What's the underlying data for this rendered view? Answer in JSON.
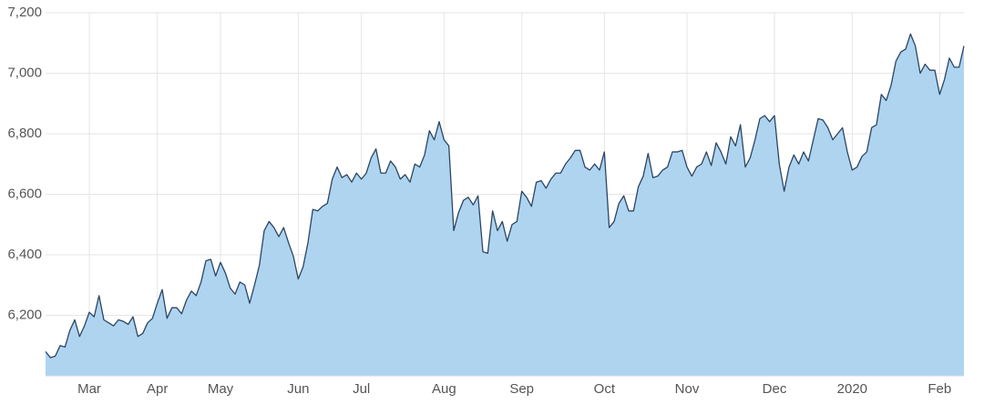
{
  "chart_data": {
    "type": "area",
    "categories": [
      null,
      null,
      null,
      null,
      null,
      null,
      null,
      null,
      null,
      "Mar",
      null,
      null,
      null,
      null,
      null,
      null,
      null,
      null,
      null,
      null,
      null,
      null,
      null,
      "Apr",
      null,
      null,
      null,
      null,
      null,
      null,
      null,
      null,
      null,
      null,
      null,
      null,
      "May",
      null,
      null,
      null,
      null,
      null,
      null,
      null,
      null,
      null,
      null,
      null,
      null,
      null,
      null,
      null,
      "Jun",
      null,
      null,
      null,
      null,
      null,
      null,
      null,
      null,
      null,
      null,
      null,
      null,
      "Jul",
      null,
      null,
      null,
      null,
      null,
      null,
      null,
      null,
      null,
      null,
      null,
      null,
      null,
      null,
      null,
      null,
      "Aug",
      null,
      null,
      null,
      null,
      null,
      null,
      null,
      null,
      null,
      null,
      null,
      null,
      null,
      null,
      null,
      "Sep",
      null,
      null,
      null,
      null,
      null,
      null,
      null,
      null,
      null,
      null,
      null,
      null,
      null,
      null,
      null,
      null,
      "Oct",
      null,
      null,
      null,
      null,
      null,
      null,
      null,
      null,
      null,
      null,
      null,
      null,
      null,
      null,
      null,
      null,
      "Nov",
      null,
      null,
      null,
      null,
      null,
      null,
      null,
      null,
      null,
      null,
      null,
      null,
      null,
      null,
      null,
      null,
      null,
      "Dec",
      null,
      null,
      null,
      null,
      null,
      null,
      null,
      null,
      null,
      null,
      null,
      null,
      null,
      null,
      null,
      "2020",
      null,
      null,
      null,
      null,
      null,
      null,
      null,
      null,
      null,
      null,
      null,
      null,
      null,
      null,
      null,
      null,
      null,
      "Feb",
      null,
      null,
      null,
      null,
      null
    ],
    "values": [
      6080,
      6060,
      6065,
      6100,
      6095,
      6150,
      6185,
      6130,
      6165,
      6210,
      6195,
      6265,
      6185,
      6175,
      6165,
      6185,
      6180,
      6170,
      6195,
      6130,
      6140,
      6175,
      6190,
      6240,
      6285,
      6190,
      6225,
      6225,
      6205,
      6250,
      6280,
      6265,
      6310,
      6380,
      6385,
      6330,
      6375,
      6340,
      6290,
      6270,
      6310,
      6300,
      6240,
      6300,
      6365,
      6480,
      6510,
      6490,
      6460,
      6490,
      6440,
      6395,
      6320,
      6360,
      6440,
      6550,
      6545,
      6560,
      6570,
      6650,
      6690,
      6655,
      6665,
      6640,
      6670,
      6650,
      6670,
      6720,
      6750,
      6670,
      6670,
      6710,
      6690,
      6650,
      6665,
      6640,
      6700,
      6690,
      6730,
      6810,
      6780,
      6840,
      6780,
      6760,
      6480,
      6540,
      6580,
      6590,
      6565,
      6595,
      6410,
      6405,
      6545,
      6480,
      6510,
      6445,
      6500,
      6510,
      6610,
      6590,
      6560,
      6640,
      6645,
      6620,
      6650,
      6670,
      6670,
      6700,
      6720,
      6745,
      6745,
      6690,
      6680,
      6700,
      6680,
      6740,
      6490,
      6510,
      6570,
      6595,
      6545,
      6545,
      6625,
      6660,
      6735,
      6655,
      6660,
      6680,
      6690,
      6740,
      6740,
      6745,
      6690,
      6660,
      6690,
      6700,
      6740,
      6695,
      6770,
      6740,
      6700,
      6790,
      6760,
      6830,
      6690,
      6720,
      6780,
      6850,
      6860,
      6840,
      6860,
      6700,
      6610,
      6690,
      6730,
      6700,
      6740,
      6710,
      6780,
      6850,
      6845,
      6820,
      6780,
      6800,
      6820,
      6740,
      6680,
      6690,
      6725,
      6740,
      6820,
      6830,
      6930,
      6910,
      6960,
      7040,
      7070,
      7080,
      7130,
      7090,
      7000,
      7030,
      7010,
      7010,
      6930,
      6980,
      7050,
      7020,
      7020,
      7090
    ],
    "color": "#aed4f0",
    "line_color": "#2b4563",
    "ylim": [
      6000,
      7200
    ],
    "yticks": [
      {
        "value": 6200,
        "label": "6,200"
      },
      {
        "value": 6400,
        "label": "6,400"
      },
      {
        "value": 6600,
        "label": "6,600"
      },
      {
        "value": 6800,
        "label": "6,800"
      },
      {
        "value": 7000,
        "label": "7,000"
      },
      {
        "value": 7200,
        "label": "7,200"
      }
    ],
    "grid": true
  }
}
